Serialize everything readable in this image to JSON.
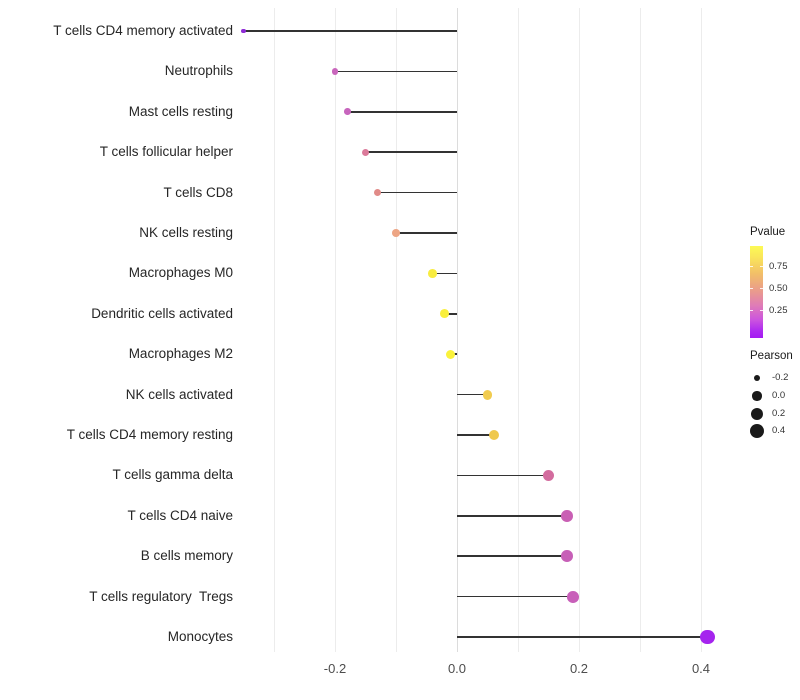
{
  "chart_data": {
    "type": "scatter",
    "subtype": "lollipop",
    "title": "",
    "xlabel": "",
    "ylabel": "",
    "xlim": [
      -0.37,
      0.46
    ],
    "grid": "on",
    "gridline_values": [
      -0.3,
      -0.2,
      -0.1,
      0.0,
      0.1,
      0.2,
      0.3,
      0.4
    ],
    "x_ticks": [
      {
        "value": -0.2,
        "label": "-0.2"
      },
      {
        "value": 0.0,
        "label": "0.0"
      },
      {
        "value": 0.2,
        "label": "0.2"
      },
      {
        "value": 0.4,
        "label": "0.4"
      }
    ],
    "points": [
      {
        "label": "T cells CD4 memory activated",
        "pearson": -0.35,
        "pvalue_approx": 0.08,
        "color": "#8E2BD6"
      },
      {
        "label": "Neutrophils",
        "pearson": -0.2,
        "pvalue_approx": 0.33,
        "color": "#C966BC"
      },
      {
        "label": "Mast cells resting",
        "pearson": -0.18,
        "pvalue_approx": 0.32,
        "color": "#C765BD"
      },
      {
        "label": "T cells follicular helper",
        "pearson": -0.15,
        "pvalue_approx": 0.47,
        "color": "#DB7A9A"
      },
      {
        "label": "T cells CD8",
        "pearson": -0.13,
        "pvalue_approx": 0.55,
        "color": "#E18B88"
      },
      {
        "label": "NK cells resting",
        "pearson": -0.1,
        "pvalue_approx": 0.63,
        "color": "#EDA584"
      },
      {
        "label": "Macrophages M0",
        "pearson": -0.04,
        "pvalue_approx": 0.93,
        "color": "#F8EC40"
      },
      {
        "label": "Dendritic cells activated",
        "pearson": -0.02,
        "pvalue_approx": 0.95,
        "color": "#F9EF3D"
      },
      {
        "label": "Macrophages M2",
        "pearson": -0.01,
        "pvalue_approx": 0.97,
        "color": "#FAF23B"
      },
      {
        "label": "NK cells activated",
        "pearson": 0.05,
        "pvalue_approx": 0.82,
        "color": "#F1CC50"
      },
      {
        "label": "T cells CD4 memory resting",
        "pearson": 0.06,
        "pvalue_approx": 0.8,
        "color": "#EFC84D"
      },
      {
        "label": "T cells gamma delta",
        "pearson": 0.15,
        "pvalue_approx": 0.42,
        "color": "#D36C9E"
      },
      {
        "label": "T cells CD4 naive",
        "pearson": 0.18,
        "pvalue_approx": 0.3,
        "color": "#C95FB4"
      },
      {
        "label": "B cells memory",
        "pearson": 0.18,
        "pvalue_approx": 0.3,
        "color": "#C75FB7"
      },
      {
        "label": "T cells regulatory  Tregs",
        "pearson": 0.19,
        "pvalue_approx": 0.3,
        "color": "#C85FB9"
      },
      {
        "label": "Monocytes",
        "pearson": 0.41,
        "pvalue_approx": 0.02,
        "color": "#A524EE"
      }
    ],
    "legend": {
      "position": "right",
      "pvalue": {
        "title": "Pvalue",
        "tick_labels": [
          "0.75",
          "0.50",
          "0.25"
        ],
        "tick_values": [
          0.75,
          0.5,
          0.25
        ],
        "gradient_stops": [
          {
            "offset": 0.0,
            "color": "#FCFA55"
          },
          {
            "offset": 0.12,
            "color": "#FAE65A"
          },
          {
            "offset": 0.3,
            "color": "#F2BF68"
          },
          {
            "offset": 0.5,
            "color": "#E9998F"
          },
          {
            "offset": 0.65,
            "color": "#DF7BB8"
          },
          {
            "offset": 0.8,
            "color": "#CC55DE"
          },
          {
            "offset": 0.92,
            "color": "#AE2BF0"
          },
          {
            "offset": 1.0,
            "color": "#A41BF2"
          }
        ]
      },
      "pearson": {
        "title": "Pearson",
        "sizes": [
          {
            "label": "-0.2",
            "value": -0.2
          },
          {
            "label": "0.0",
            "value": 0.0
          },
          {
            "label": "0.2",
            "value": 0.2
          },
          {
            "label": "0.4",
            "value": 0.4
          }
        ]
      }
    },
    "stem_color": "#333333"
  }
}
